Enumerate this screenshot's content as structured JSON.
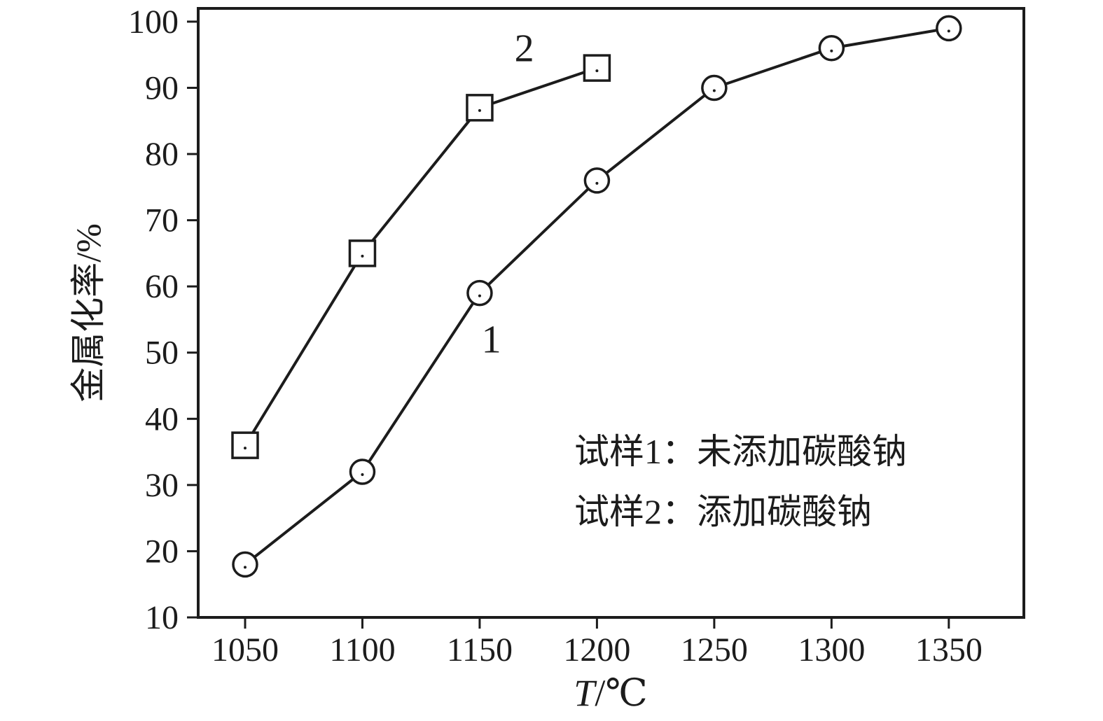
{
  "chart_data": {
    "type": "line",
    "title": "",
    "xlabel": "T/℃",
    "xlabel_parts": {
      "italic": "T",
      "rest": "/℃"
    },
    "ylabel": "金属化率/%",
    "xlim": [
      1030,
      1382
    ],
    "ylim": [
      10,
      102
    ],
    "x_ticks": [
      "1050",
      "1100",
      "1150",
      "1200",
      "1250",
      "1300",
      "1350"
    ],
    "x_tick_values": [
      1050,
      1100,
      1150,
      1200,
      1250,
      1300,
      1350
    ],
    "y_ticks": [
      "10",
      "20",
      "30",
      "40",
      "50",
      "60",
      "70",
      "80",
      "90",
      "100"
    ],
    "y_tick_values": [
      10,
      20,
      30,
      40,
      50,
      60,
      70,
      80,
      90,
      100
    ],
    "grid": false,
    "legend_position": "inside-lower-right",
    "series": [
      {
        "name": "试样1：未添加碳酸钠",
        "curve_label": "1",
        "marker": "circle",
        "x": [
          1050,
          1100,
          1150,
          1200,
          1250,
          1300,
          1350
        ],
        "values": [
          18,
          32,
          59,
          76,
          90,
          96,
          99
        ]
      },
      {
        "name": "试样2：添加碳酸钠",
        "curve_label": "2",
        "marker": "square",
        "x": [
          1050,
          1100,
          1150,
          1200
        ],
        "values": [
          36,
          65,
          87,
          93
        ]
      }
    ],
    "annotations": [
      {
        "text": "1",
        "x": 1155,
        "y": 50
      },
      {
        "text": "2",
        "x": 1169,
        "y": 94
      }
    ]
  },
  "colors": {
    "axis": "#1c1c1c",
    "line": "#1c1c1c",
    "marker_fill": "#ffffff",
    "background": "#ffffff",
    "text": "#1c1c1c"
  }
}
